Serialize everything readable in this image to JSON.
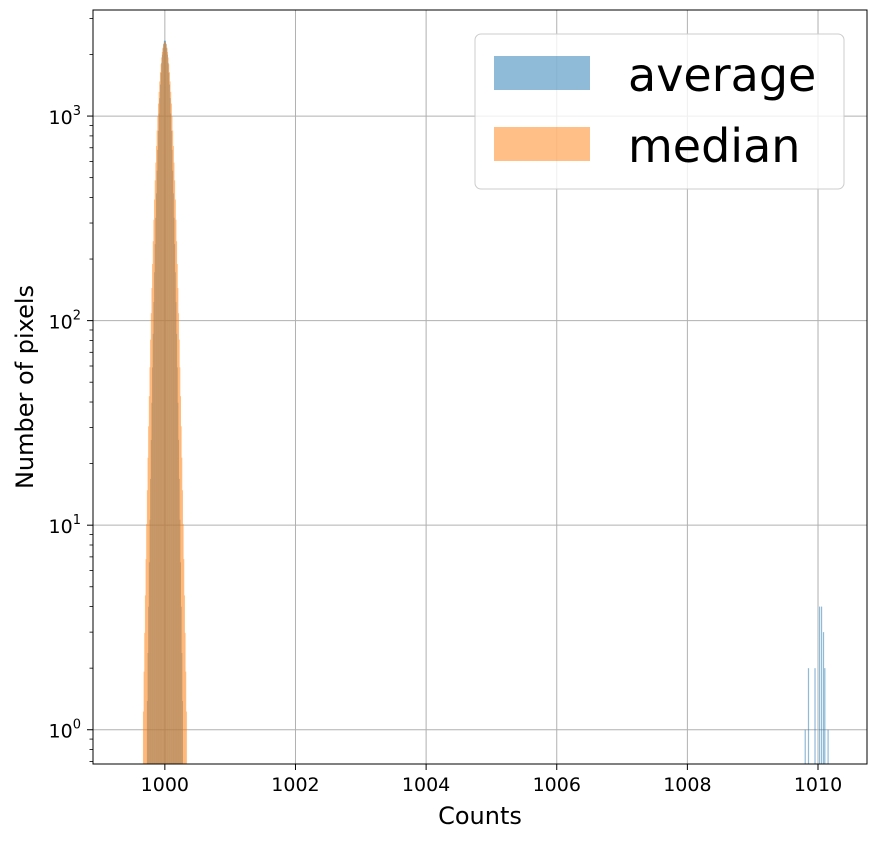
{
  "chart_data": {
    "type": "bar",
    "title": "",
    "xlabel": "Counts",
    "ylabel": "Number of pixels",
    "xlim": [
      998.9,
      1010.75
    ],
    "ylim": [
      0.68,
      3300
    ],
    "yscale": "log",
    "grid": true,
    "legend_position": "top-right",
    "x_ticks": [
      1000,
      1002,
      1004,
      1006,
      1008,
      1010
    ],
    "x_tick_labels": [
      "1000",
      "1002",
      "1004",
      "1006",
      "1008",
      "1010"
    ],
    "y_ticks": [
      1,
      10,
      100,
      1000
    ],
    "y_tick_labels": [
      {
        "base": "10",
        "exp": "0"
      },
      {
        "base": "10",
        "exp": "1"
      },
      {
        "base": "10",
        "exp": "2"
      },
      {
        "base": "10",
        "exp": "3"
      }
    ],
    "series": [
      {
        "name": "average",
        "color": "#1f77b4",
        "opacity": 0.5,
        "distribution": {
          "kind": "gaussian",
          "center": 1000.0,
          "sigma": 0.07,
          "peak": 2350,
          "bin_width": 0.01,
          "min_count": 1
        },
        "extra_bars": [
          {
            "x": 1009.8,
            "value": 1
          },
          {
            "x": 1009.85,
            "value": 2
          },
          {
            "x": 1009.95,
            "value": 2
          },
          {
            "x": 1010.02,
            "value": 4
          },
          {
            "x": 1010.05,
            "value": 4
          },
          {
            "x": 1010.08,
            "value": 3
          },
          {
            "x": 1010.1,
            "value": 2
          },
          {
            "x": 1010.15,
            "value": 1
          }
        ]
      },
      {
        "name": "median",
        "color": "#ff7f0e",
        "opacity": 0.5,
        "distribution": {
          "kind": "gaussian",
          "center": 1000.0,
          "sigma": 0.085,
          "peak": 2300,
          "bin_width": 0.01,
          "min_count": 1
        },
        "extra_bars": []
      }
    ]
  }
}
